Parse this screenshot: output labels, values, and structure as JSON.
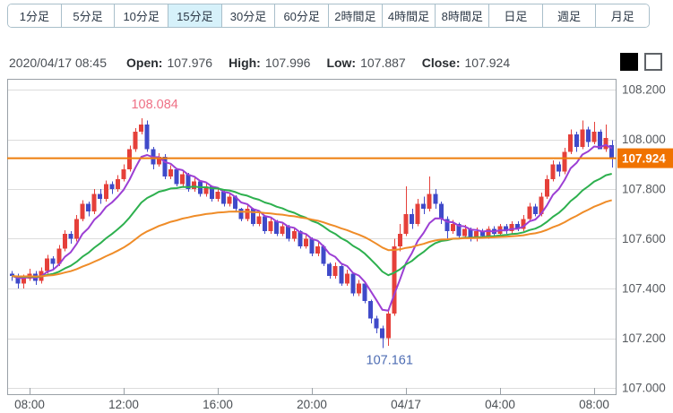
{
  "toolbar": {
    "tabs": [
      {
        "label": "1分足",
        "selected": false
      },
      {
        "label": "5分足",
        "selected": false
      },
      {
        "label": "10分足",
        "selected": false
      },
      {
        "label": "15分足",
        "selected": true
      },
      {
        "label": "30分足",
        "selected": false
      },
      {
        "label": "60分足",
        "selected": false
      },
      {
        "label": "2時間足",
        "selected": false
      },
      {
        "label": "4時間足",
        "selected": false
      },
      {
        "label": "8時間足",
        "selected": false
      },
      {
        "label": "日足",
        "selected": false
      },
      {
        "label": "週足",
        "selected": false
      },
      {
        "label": "月足",
        "selected": false
      }
    ]
  },
  "header": {
    "datetime": "2020/04/17 08:45",
    "open_label": "Open:",
    "open_value": "107.976",
    "high_label": "High:",
    "high_value": "107.996",
    "low_label": "Low:",
    "low_value": "107.887",
    "close_label": "Close:",
    "close_value": "107.924"
  },
  "candle_style_toggles": [
    {
      "name": "filled-black",
      "color": "#000000"
    },
    {
      "name": "hollow-white",
      "color": "#ffffff"
    }
  ],
  "chart_data": {
    "type": "candlestick",
    "interval_minutes": 15,
    "start_time": "07:15",
    "y_axis": {
      "min": 107.0,
      "max": 108.2,
      "step": 0.2,
      "labels": [
        "108.200",
        "108.000",
        "107.800",
        "107.600",
        "107.400",
        "107.200",
        "107.000"
      ]
    },
    "x_ticks": [
      {
        "i": 3,
        "label": "08:00"
      },
      {
        "i": 19,
        "label": "12:00"
      },
      {
        "i": 35,
        "label": "16:00"
      },
      {
        "i": 51,
        "label": "20:00"
      },
      {
        "i": 67,
        "label": "04/17"
      },
      {
        "i": 83,
        "label": "04:00"
      },
      {
        "i": 99,
        "label": "08:00"
      }
    ],
    "current_price": 107.924,
    "current_price_label": "107.924",
    "high_annotation": {
      "label": "108.084",
      "value": 108.084
    },
    "low_annotation": {
      "label": "107.161",
      "value": 107.161
    },
    "moving_averages": [
      {
        "name": "ma-short",
        "period": 7,
        "color": "#9c3fd4"
      },
      {
        "name": "ma-mid",
        "period": 22,
        "color": "#2db04e"
      },
      {
        "name": "ma-long",
        "period": 50,
        "color": "#ef8c28"
      }
    ],
    "colors": {
      "up": "#e5403a",
      "down": "#3f4ac9",
      "price_line": "#ee7d0c",
      "price_box": "#f07300",
      "grid": "#dcdcdc",
      "border": "#9aa1a7",
      "axis_text": "#55595e",
      "high_label": "#ef7186",
      "low_label": "#4d6cb3"
    },
    "ohlc": [
      [
        107.46,
        107.47,
        107.43,
        107.45
      ],
      [
        107.45,
        107.46,
        107.4,
        107.42
      ],
      [
        107.42,
        107.455,
        107.4,
        107.44
      ],
      [
        107.44,
        107.48,
        107.43,
        107.46
      ],
      [
        107.46,
        107.47,
        107.415,
        107.43
      ],
      [
        107.43,
        107.485,
        107.42,
        107.47
      ],
      [
        107.47,
        107.535,
        107.46,
        107.52
      ],
      [
        107.52,
        107.53,
        107.48,
        107.5
      ],
      [
        107.5,
        107.575,
        107.49,
        107.56
      ],
      [
        107.56,
        107.635,
        107.55,
        107.62
      ],
      [
        107.62,
        107.63,
        107.58,
        107.6
      ],
      [
        107.6,
        107.695,
        107.59,
        107.68
      ],
      [
        107.68,
        107.755,
        107.67,
        107.74
      ],
      [
        107.74,
        107.75,
        107.69,
        107.71
      ],
      [
        107.71,
        107.8,
        107.7,
        107.78
      ],
      [
        107.78,
        107.8,
        107.74,
        107.76
      ],
      [
        107.76,
        107.835,
        107.75,
        107.82
      ],
      [
        107.82,
        107.83,
        107.78,
        107.8
      ],
      [
        107.8,
        107.855,
        107.79,
        107.84
      ],
      [
        107.84,
        107.9,
        107.83,
        107.88
      ],
      [
        107.88,
        107.975,
        107.87,
        107.96
      ],
      [
        107.96,
        108.045,
        107.95,
        108.03
      ],
      [
        108.03,
        108.084,
        108.02,
        108.06
      ],
      [
        108.06,
        108.075,
        107.95,
        107.96
      ],
      [
        107.96,
        107.97,
        107.88,
        107.9
      ],
      [
        107.9,
        107.945,
        107.89,
        107.93
      ],
      [
        107.93,
        107.94,
        107.84,
        107.85
      ],
      [
        107.85,
        107.895,
        107.84,
        107.88
      ],
      [
        107.88,
        107.885,
        107.81,
        107.82
      ],
      [
        107.82,
        107.875,
        107.81,
        107.86
      ],
      [
        107.86,
        107.865,
        107.79,
        107.8
      ],
      [
        107.8,
        107.845,
        107.79,
        107.83
      ],
      [
        107.83,
        107.835,
        107.77,
        107.78
      ],
      [
        107.78,
        107.825,
        107.77,
        107.81
      ],
      [
        107.81,
        107.815,
        107.75,
        107.76
      ],
      [
        107.76,
        107.805,
        107.75,
        107.79
      ],
      [
        107.79,
        107.795,
        107.73,
        107.74
      ],
      [
        107.74,
        107.785,
        107.73,
        107.77
      ],
      [
        107.77,
        107.775,
        107.71,
        107.72
      ],
      [
        107.72,
        107.725,
        107.67,
        107.68
      ],
      [
        107.68,
        107.735,
        107.67,
        107.72
      ],
      [
        107.72,
        107.725,
        107.65,
        107.66
      ],
      [
        107.66,
        107.705,
        107.65,
        107.69
      ],
      [
        107.69,
        107.695,
        107.62,
        107.63
      ],
      [
        107.63,
        107.685,
        107.62,
        107.67
      ],
      [
        107.67,
        107.675,
        107.61,
        107.62
      ],
      [
        107.62,
        107.665,
        107.61,
        107.65
      ],
      [
        107.65,
        107.655,
        107.59,
        107.6
      ],
      [
        107.6,
        107.645,
        107.59,
        107.63
      ],
      [
        107.63,
        107.635,
        107.56,
        107.57
      ],
      [
        107.57,
        107.615,
        107.56,
        107.6
      ],
      [
        107.6,
        107.605,
        107.53,
        107.54
      ],
      [
        107.54,
        107.585,
        107.53,
        107.57
      ],
      [
        107.57,
        107.575,
        107.49,
        107.5
      ],
      [
        107.5,
        107.505,
        107.44,
        107.45
      ],
      [
        107.45,
        107.505,
        107.44,
        107.49
      ],
      [
        107.49,
        107.495,
        107.41,
        107.42
      ],
      [
        107.42,
        107.475,
        107.41,
        107.46
      ],
      [
        107.46,
        107.465,
        107.37,
        107.38
      ],
      [
        107.38,
        107.435,
        107.37,
        107.42
      ],
      [
        107.42,
        107.425,
        107.34,
        107.35
      ],
      [
        107.35,
        107.355,
        107.26,
        107.28
      ],
      [
        107.28,
        107.29,
        107.22,
        107.24
      ],
      [
        107.24,
        107.25,
        107.161,
        107.2
      ],
      [
        107.2,
        107.31,
        107.17,
        107.3
      ],
      [
        107.3,
        107.6,
        107.29,
        107.57
      ],
      [
        107.57,
        107.66,
        107.55,
        107.62
      ],
      [
        107.62,
        107.81,
        107.61,
        107.7
      ],
      [
        107.7,
        107.72,
        107.64,
        107.66
      ],
      [
        107.66,
        107.76,
        107.65,
        107.74
      ],
      [
        107.74,
        107.77,
        107.7,
        107.72
      ],
      [
        107.72,
        107.85,
        107.71,
        107.78
      ],
      [
        107.78,
        107.8,
        107.72,
        107.74
      ],
      [
        107.74,
        107.75,
        107.66,
        107.68
      ],
      [
        107.68,
        107.69,
        107.6,
        107.63
      ],
      [
        107.63,
        107.675,
        107.62,
        107.66
      ],
      [
        107.66,
        107.665,
        107.6,
        107.61
      ],
      [
        107.61,
        107.655,
        107.6,
        107.64
      ],
      [
        107.64,
        107.645,
        107.59,
        107.6
      ],
      [
        107.6,
        107.645,
        107.59,
        107.63
      ],
      [
        107.63,
        107.64,
        107.6,
        107.61
      ],
      [
        107.61,
        107.65,
        107.6,
        107.64
      ],
      [
        107.64,
        107.65,
        107.61,
        107.62
      ],
      [
        107.62,
        107.66,
        107.61,
        107.65
      ],
      [
        107.65,
        107.66,
        107.62,
        107.63
      ],
      [
        107.63,
        107.67,
        107.62,
        107.66
      ],
      [
        107.66,
        107.67,
        107.63,
        107.64
      ],
      [
        107.64,
        107.695,
        107.63,
        107.68
      ],
      [
        107.68,
        107.745,
        107.67,
        107.73
      ],
      [
        107.73,
        107.74,
        107.69,
        107.7
      ],
      [
        107.7,
        107.785,
        107.69,
        107.77
      ],
      [
        107.77,
        107.855,
        107.76,
        107.84
      ],
      [
        107.84,
        107.915,
        107.83,
        107.9
      ],
      [
        107.9,
        107.91,
        107.85,
        107.87
      ],
      [
        107.87,
        107.965,
        107.86,
        107.95
      ],
      [
        107.95,
        108.04,
        107.94,
        108.02
      ],
      [
        108.02,
        108.03,
        107.95,
        107.97
      ],
      [
        107.97,
        108.075,
        107.96,
        108.04
      ],
      [
        108.04,
        108.05,
        107.97,
        107.99
      ],
      [
        107.99,
        108.07,
        107.98,
        108.03
      ],
      [
        108.03,
        108.04,
        107.96,
        107.96
      ],
      [
        107.96,
        108.06,
        107.95,
        108.005
      ],
      [
        107.976,
        107.996,
        107.887,
        107.924
      ]
    ]
  }
}
